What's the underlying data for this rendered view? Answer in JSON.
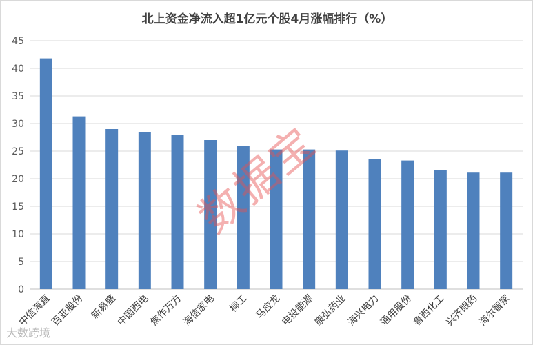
{
  "chart_data": {
    "type": "bar",
    "title": "北上资金净流入超1亿元个股4月涨幅排行（%）",
    "categories": [
      "中信海直",
      "百亚股份",
      "新易盛",
      "中国西电",
      "焦作万方",
      "海信家电",
      "柳工",
      "马应龙",
      "电投能源",
      "康弘药业",
      "海兴电力",
      "通用股份",
      "鲁西化工",
      "兴齐眼药",
      "海尔智家"
    ],
    "values": [
      41.8,
      31.3,
      29.0,
      28.5,
      27.9,
      27.0,
      26.0,
      25.3,
      25.3,
      25.1,
      23.6,
      23.3,
      21.6,
      21.1,
      21.1
    ],
    "ylim": [
      0,
      45
    ],
    "yticks": [
      0,
      5,
      10,
      15,
      20,
      25,
      30,
      35,
      40,
      45
    ],
    "grid": true,
    "bar_color": "#4f81bd"
  },
  "watermark": "数据宝",
  "logo": "大数跨境"
}
